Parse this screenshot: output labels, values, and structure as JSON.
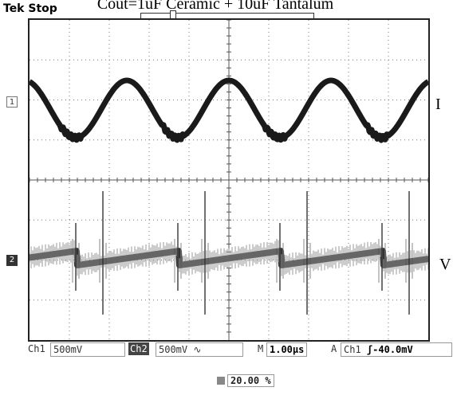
{
  "title": "Cout=1uF Ceramic + 10uF Tantalum",
  "status": {
    "brand": "Tek",
    "state": "Stop"
  },
  "markers": {
    "trigger": "T",
    "ch1": "1",
    "ch2": "2"
  },
  "trace_labels": {
    "ch1": "I",
    "ch2": "V"
  },
  "bottom": {
    "ch1_label": "Ch1",
    "ch1_scale": "500mV",
    "ch2_label": "Ch2",
    "ch2_scale": "500mV",
    "ch2_coupling": "∿",
    "timebase_label": "M",
    "timebase_value": "1.00µs",
    "trigger_label": "A",
    "trigger_source": "Ch1",
    "trigger_slope": "ʃ",
    "trigger_level": "-40.0mV"
  },
  "trigger_position": "20.00 %",
  "colors": {
    "trace": "#1a1a1a",
    "noise": "#9a9a9a",
    "grid": "#777777"
  }
}
